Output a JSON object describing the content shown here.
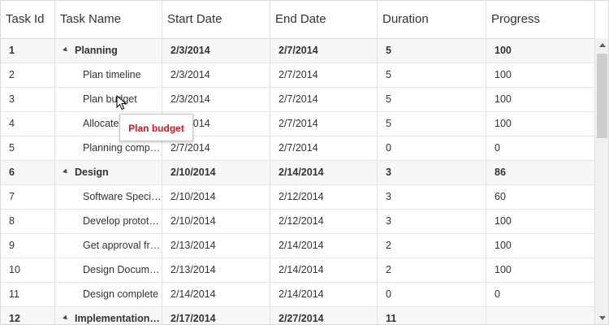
{
  "columns": [
    "Task Id",
    "Task Name",
    "Start Date",
    "End Date",
    "Duration",
    "Progress"
  ],
  "rows": [
    {
      "id": "1",
      "name": "Planning",
      "start": "2/3/2014",
      "end": "2/7/2014",
      "duration": "5",
      "progress": "100",
      "parent": true
    },
    {
      "id": "2",
      "name": "Plan timeline",
      "start": "2/3/2014",
      "end": "2/7/2014",
      "duration": "5",
      "progress": "100",
      "parent": false
    },
    {
      "id": "3",
      "name": "Plan budget",
      "start": "2/3/2014",
      "end": "2/7/2014",
      "duration": "5",
      "progress": "100",
      "parent": false
    },
    {
      "id": "4",
      "name": "Allocate resources",
      "start": "2/3/2014",
      "end": "2/7/2014",
      "duration": "5",
      "progress": "100",
      "parent": false
    },
    {
      "id": "5",
      "name": "Planning complete",
      "start": "2/7/2014",
      "end": "2/7/2014",
      "duration": "0",
      "progress": "0",
      "parent": false
    },
    {
      "id": "6",
      "name": "Design",
      "start": "2/10/2014",
      "end": "2/14/2014",
      "duration": "3",
      "progress": "86",
      "parent": true
    },
    {
      "id": "7",
      "name": "Software Specification",
      "start": "2/10/2014",
      "end": "2/12/2014",
      "duration": "3",
      "progress": "60",
      "parent": false
    },
    {
      "id": "8",
      "name": "Develop prototype",
      "start": "2/10/2014",
      "end": "2/12/2014",
      "duration": "3",
      "progress": "100",
      "parent": false
    },
    {
      "id": "9",
      "name": "Get approval from customer",
      "start": "2/13/2014",
      "end": "2/14/2014",
      "duration": "2",
      "progress": "100",
      "parent": false
    },
    {
      "id": "10",
      "name": "Design Documentation",
      "start": "2/13/2014",
      "end": "2/14/2014",
      "duration": "2",
      "progress": "100",
      "parent": false
    },
    {
      "id": "11",
      "name": "Design complete",
      "start": "2/14/2014",
      "end": "2/14/2014",
      "duration": "0",
      "progress": "0",
      "parent": false
    },
    {
      "id": "12",
      "name": "Implementation Phase",
      "start": "2/17/2014",
      "end": "2/27/2014",
      "duration": "11",
      "progress": "",
      "parent": true
    }
  ],
  "tooltip": {
    "text": "Plan budget"
  }
}
